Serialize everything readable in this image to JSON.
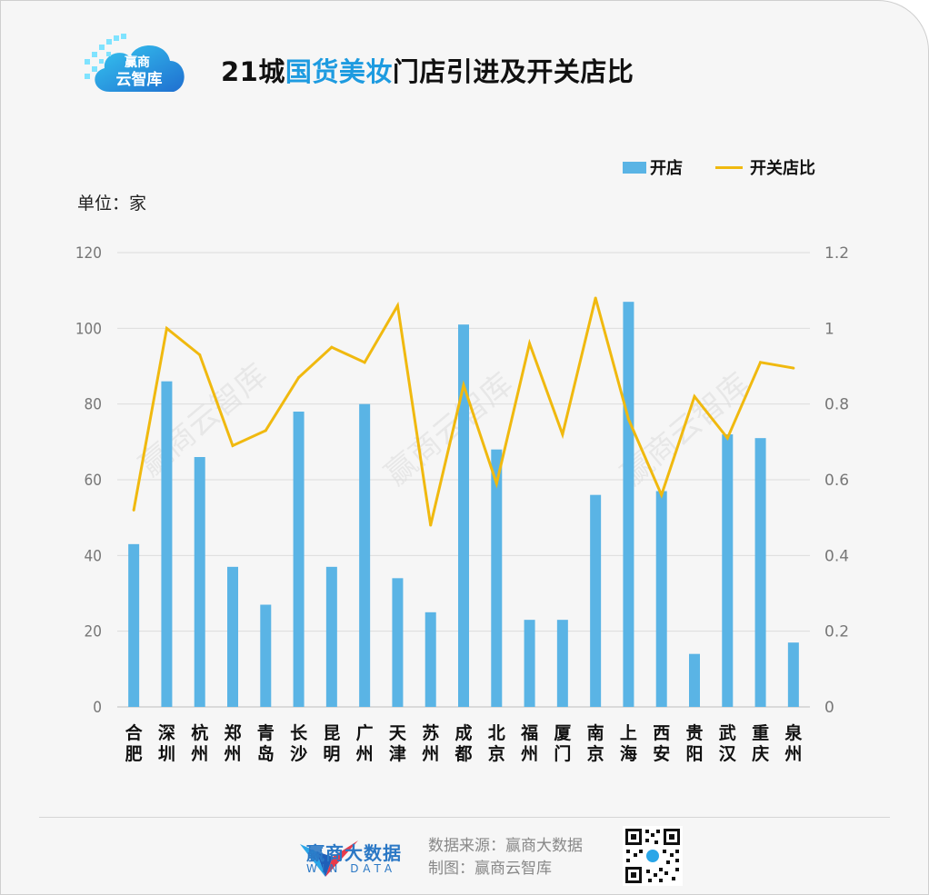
{
  "header": {
    "title_prefix": "21城",
    "title_highlight": "国货美妆",
    "title_suffix": "门店引进及开关店比",
    "logo_text": "赢商\n云智库"
  },
  "unit_label": "单位：家",
  "footer": {
    "brand_name": "赢商大数据",
    "brand_sub": "WIN DATA",
    "source": "数据来源：赢商大数据",
    "maker": "制图：赢商云智库"
  },
  "watermark": "赢商云智库",
  "colors": {
    "bar": "#5ab4e5",
    "line": "#f0b90f",
    "title_highlight": "#1d9be0"
  },
  "chart_data": {
    "type": "bar",
    "categories": [
      "合肥",
      "深圳",
      "杭州",
      "郑州",
      "青岛",
      "长沙",
      "昆明",
      "广州",
      "天津",
      "苏州",
      "成都",
      "北京",
      "福州",
      "厦门",
      "南京",
      "上海",
      "西安",
      "贵阳",
      "武汉",
      "重庆",
      "泉州"
    ],
    "series": [
      {
        "name": "开店",
        "type": "bar",
        "axis": "left",
        "values": [
          43,
          86,
          66,
          37,
          27,
          78,
          37,
          80,
          34,
          25,
          101,
          68,
          23,
          23,
          56,
          107,
          57,
          14,
          72,
          71,
          17
        ]
      },
      {
        "name": "开关店比",
        "type": "line",
        "axis": "right",
        "values": [
          0.52,
          1.0,
          0.93,
          0.69,
          0.73,
          0.87,
          0.95,
          0.91,
          1.06,
          0.48,
          0.85,
          0.59,
          0.96,
          0.72,
          1.08,
          0.76,
          0.56,
          0.82,
          0.71,
          0.91,
          0.895
        ]
      }
    ],
    "y_left": {
      "min": 0,
      "max": 120,
      "ticks": [
        "0",
        "20",
        "40",
        "60",
        "80",
        "100",
        "120"
      ]
    },
    "y_right": {
      "min": 0,
      "max": 1.2,
      "ticks": [
        "0",
        "0.2",
        "0.4",
        "0.6",
        "0.8",
        "1",
        "1.2"
      ]
    },
    "grid": true,
    "legend_position": "top-right"
  }
}
